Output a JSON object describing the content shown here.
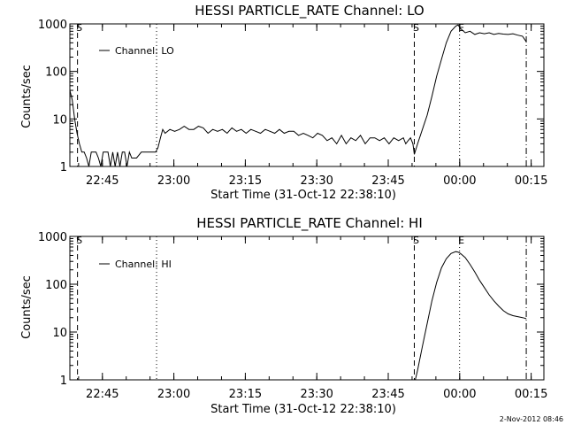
{
  "timestamp": "2-Nov-2012 08:46",
  "chart_data": [
    {
      "type": "line",
      "title": "HESSI PARTICLE_RATE Channel: LO",
      "xlabel": "Start Time (31-Oct-12 22:38:10)",
      "ylabel": "Counts/sec",
      "yscale": "log",
      "ylim": [
        1,
        1000
      ],
      "xlim_minutes": [
        0,
        99.5
      ],
      "xticks": [
        {
          "min": 6.83,
          "label": "22:45"
        },
        {
          "min": 21.83,
          "label": "23:00"
        },
        {
          "min": 36.83,
          "label": "23:15"
        },
        {
          "min": 51.83,
          "label": "23:30"
        },
        {
          "min": 66.83,
          "label": "23:45"
        },
        {
          "min": 81.83,
          "label": "00:00"
        },
        {
          "min": 96.83,
          "label": "00:15"
        }
      ],
      "yticks": [
        {
          "value": 1,
          "label": "1"
        },
        {
          "value": 10,
          "label": "10"
        },
        {
          "value": 100,
          "label": "100"
        },
        {
          "value": 1000,
          "label": "1000"
        }
      ],
      "legend": {
        "label": "Channel: LO",
        "placement": "top-left"
      },
      "markers": [
        {
          "min": 1.6,
          "style": "dashed",
          "label": "S"
        },
        {
          "min": 18.2,
          "style": "dotted",
          "label": ""
        },
        {
          "min": 72.3,
          "style": "dashed",
          "label": "S"
        },
        {
          "min": 81.8,
          "style": "dotted",
          "label": "E"
        },
        {
          "min": 95.8,
          "style": "dashdot",
          "label": ""
        }
      ],
      "series": [
        {
          "name": "Channel: LO",
          "x": [
            0,
            0.5,
            1.0,
            1.5,
            2.0,
            2.5,
            3.0,
            3.5,
            4.0,
            4.5,
            5.0,
            5.5,
            6.0,
            6.5,
            7.0,
            7.5,
            8.0,
            8.5,
            9.0,
            9.5,
            10.0,
            10.5,
            11.0,
            11.5,
            12.0,
            12.5,
            13.0,
            14.0,
            15.0,
            16.0,
            17.0,
            17.5,
            18.0,
            18.5,
            19.0,
            19.5,
            20.0,
            21.0,
            22.0,
            23.0,
            24.0,
            25.0,
            26.0,
            27.0,
            28.0,
            29.0,
            30.0,
            31.0,
            32.0,
            33.0,
            34.0,
            35.0,
            36.0,
            37.0,
            38.0,
            39.0,
            40.0,
            41.0,
            42.0,
            43.0,
            44.0,
            45.0,
            46.0,
            47.0,
            48.0,
            49.0,
            50.0,
            51.0,
            52.0,
            53.0,
            54.0,
            55.0,
            56.0,
            57.0,
            58.0,
            59.0,
            60.0,
            61.0,
            62.0,
            63.0,
            64.0,
            65.0,
            66.0,
            67.0,
            68.0,
            69.0,
            70.0,
            70.5,
            71.0,
            71.5,
            72.0,
            72.3,
            73.0,
            74.0,
            75.0,
            76.0,
            77.0,
            78.0,
            79.0,
            80.0,
            81.0,
            81.5,
            82.0,
            83.0,
            84.0,
            85.0,
            86.0,
            87.0,
            88.0,
            89.0,
            90.0,
            91.0,
            92.0,
            93.0,
            94.0,
            95.0,
            95.8
          ],
          "y": [
            40,
            25,
            10,
            5,
            3,
            2,
            2,
            1.5,
            1,
            2,
            2,
            2,
            1.5,
            1,
            2,
            2,
            2,
            1,
            2,
            1,
            2,
            1,
            2,
            2,
            1,
            2,
            1.5,
            1.5,
            2,
            2,
            2,
            2,
            2,
            2.5,
            4,
            6,
            5,
            6,
            5.5,
            6,
            7,
            6,
            6,
            7,
            6.5,
            5,
            6,
            5.5,
            6,
            5,
            6.5,
            5.5,
            6,
            5,
            6,
            5.5,
            5,
            6,
            5.5,
            5,
            6,
            5,
            5.5,
            5.5,
            4.5,
            5,
            4.5,
            4,
            5,
            4.5,
            3.5,
            4,
            3,
            4.5,
            3,
            4,
            3.5,
            4.5,
            3,
            4,
            4,
            3.5,
            4,
            3,
            4,
            3.5,
            4,
            3,
            3.5,
            4,
            3,
            1.8,
            3,
            6,
            12,
            30,
            80,
            180,
            400,
            700,
            900,
            950,
            800,
            650,
            700,
            600,
            650,
            620,
            650,
            600,
            630,
            610,
            600,
            620,
            580,
            550,
            420
          ]
        }
      ]
    },
    {
      "type": "line",
      "title": "HESSI PARTICLE_RATE Channel: HI",
      "xlabel": "Start Time (31-Oct-12 22:38:10)",
      "ylabel": "Counts/sec",
      "yscale": "log",
      "ylim": [
        1,
        1000
      ],
      "xlim_minutes": [
        0,
        99.5
      ],
      "xticks": [
        {
          "min": 6.83,
          "label": "22:45"
        },
        {
          "min": 21.83,
          "label": "23:00"
        },
        {
          "min": 36.83,
          "label": "23:15"
        },
        {
          "min": 51.83,
          "label": "23:30"
        },
        {
          "min": 66.83,
          "label": "23:45"
        },
        {
          "min": 81.83,
          "label": "00:00"
        },
        {
          "min": 96.83,
          "label": "00:15"
        }
      ],
      "yticks": [
        {
          "value": 1,
          "label": "1"
        },
        {
          "value": 10,
          "label": "10"
        },
        {
          "value": 100,
          "label": "100"
        },
        {
          "value": 1000,
          "label": "1000"
        }
      ],
      "legend": {
        "label": "Channel: HI",
        "placement": "top-left"
      },
      "markers": [
        {
          "min": 1.6,
          "style": "dashed",
          "label": "S"
        },
        {
          "min": 18.2,
          "style": "dotted",
          "label": ""
        },
        {
          "min": 72.3,
          "style": "dashed",
          "label": "S"
        },
        {
          "min": 81.8,
          "style": "dotted",
          "label": "E"
        },
        {
          "min": 95.8,
          "style": "dashdot",
          "label": ""
        }
      ],
      "series": [
        {
          "name": "Channel: HI",
          "x": [
            72.5,
            73.0,
            74.0,
            75.0,
            76.0,
            77.0,
            78.0,
            79.0,
            80.0,
            81.0,
            81.5,
            82.0,
            83.0,
            84.0,
            85.0,
            86.0,
            87.0,
            88.0,
            89.0,
            90.0,
            91.0,
            92.0,
            93.0,
            94.0,
            95.0,
            95.8
          ],
          "y": [
            1,
            1.6,
            5,
            15,
            45,
            110,
            220,
            340,
            440,
            480,
            470,
            440,
            360,
            260,
            180,
            120,
            85,
            60,
            45,
            35,
            28,
            24,
            22,
            21,
            20,
            19
          ]
        }
      ]
    }
  ]
}
